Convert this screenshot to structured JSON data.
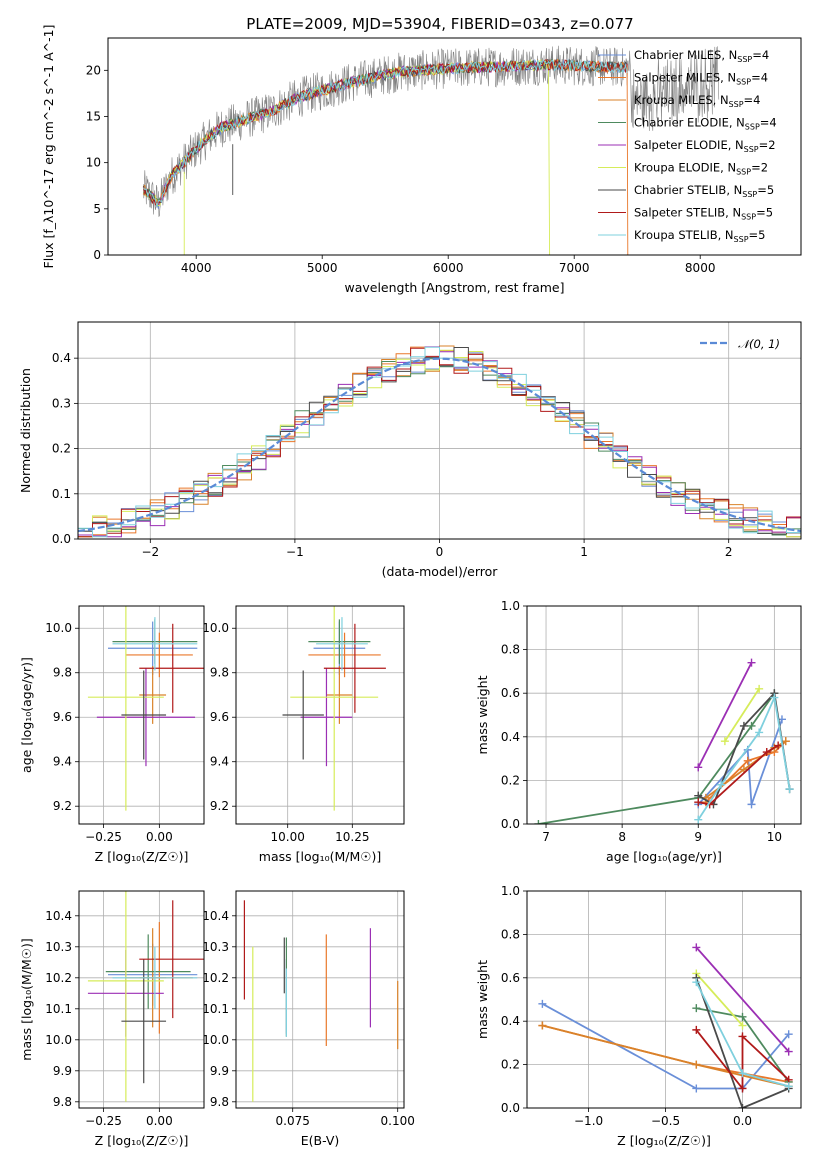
{
  "title": "PLATE=2009, MJD=53904, FIBERID=0343, z=0.077",
  "colors": [
    "#6a8fd8",
    "#e9782b",
    "#d9822a",
    "#4e8a5e",
    "#9b2fb4",
    "#d6ec5a",
    "#4a4a4a",
    "#b01a1a",
    "#7fd0de"
  ],
  "chart_data": [
    {
      "id": "spectrum",
      "type": "line",
      "xlabel": "wavelength [Angstrom, rest frame]",
      "ylabel": "Flux [f_λ10^-17 erg cm^-2 s^-1 A^-1]",
      "xlim": [
        3300,
        8800
      ],
      "ylim": [
        0,
        23.5
      ],
      "xticks": [
        4000,
        5000,
        6000,
        7000,
        8000
      ],
      "yticks": [
        0,
        5,
        10,
        15,
        20
      ],
      "grid": false,
      "legend_placement": "right",
      "continuum": {
        "x": [
          3600,
          3700,
          3800,
          3900,
          4000,
          4100,
          4200,
          4400,
          4600,
          4800,
          5000,
          5200,
          5400,
          5600,
          5800,
          6000,
          6200,
          6400,
          6600,
          6800,
          7000,
          7200,
          7400
        ],
        "y": [
          7.0,
          5.5,
          8.5,
          10.0,
          11.5,
          12.8,
          13.8,
          14.7,
          15.6,
          17.0,
          17.8,
          18.6,
          19.2,
          19.8,
          20.0,
          20.2,
          20.3,
          20.4,
          20.5,
          20.6,
          20.5,
          20.4,
          20.3
        ]
      },
      "series": [
        {
          "label": "Chabrier MILES, N",
          "sub": "SSP",
          "suffix": "=4"
        },
        {
          "label": "Salpeter MILES, N",
          "sub": "SSP",
          "suffix": "=4"
        },
        {
          "label": "Kroupa MILES, N",
          "sub": "SSP",
          "suffix": "=4"
        },
        {
          "label": "Chabrier ELODIE, N",
          "sub": "SSP",
          "suffix": "=4"
        },
        {
          "label": "Salpeter ELODIE, N",
          "sub": "SSP",
          "suffix": "=2"
        },
        {
          "label": "Kroupa ELODIE, N",
          "sub": "SSP",
          "suffix": "=2"
        },
        {
          "label": "Chabrier STELIB, N",
          "sub": "SSP",
          "suffix": "=5"
        },
        {
          "label": "Salpeter STELIB, N",
          "sub": "SSP",
          "suffix": "=5"
        },
        {
          "label": "Kroupa STELIB, N",
          "sub": "SSP",
          "suffix": "=5"
        }
      ]
    },
    {
      "id": "residuals",
      "type": "bar",
      "xlabel": "(data-model)/error",
      "ylabel": "Normed distribution",
      "xlim": [
        -2.5,
        2.5
      ],
      "ylim": [
        0,
        0.48
      ],
      "xticks": [
        -2,
        -1,
        0,
        1,
        2
      ],
      "xticklabels": [
        "−2",
        "−1",
        "0",
        "1",
        "2"
      ],
      "yticks": [
        0.0,
        0.1,
        0.2,
        0.3,
        0.4
      ],
      "grid": true,
      "bin_width": 0.1,
      "legend": "𝒩(0, 1)",
      "legend_placement": "top-right"
    },
    {
      "id": "age_vs_Z",
      "type": "scatter",
      "xlabel": "Z [log₁₀(Z/Z☉)]",
      "ylabel": "age  [log₁₀(age/yr)]",
      "xlim": [
        -0.36,
        0.2
      ],
      "ylim": [
        9.12,
        10.1
      ],
      "xticks": [
        -0.25,
        0.0
      ],
      "xticklabels": [
        "−0.25",
        "0.00"
      ],
      "yticks": [
        9.2,
        9.4,
        9.6,
        9.8,
        10.0
      ],
      "grid": true,
      "points": [
        {
          "x": -0.03,
          "xe": 0.2,
          "y": 9.91,
          "ye": 0.12
        },
        {
          "x": 0.0,
          "xe": 0.15,
          "y": 9.88,
          "ye": 0.1
        },
        {
          "x": -0.03,
          "xe": 0.06,
          "y": 9.7,
          "ye": 0.13
        },
        {
          "x": -0.02,
          "xe": 0.19,
          "y": 9.94,
          "ye": 0.1
        },
        {
          "x": -0.06,
          "xe": 0.22,
          "y": 9.6,
          "ye": 0.22
        },
        {
          "x": -0.15,
          "xe": 0.17,
          "y": 9.69,
          "ye": 0.51
        },
        {
          "x": -0.07,
          "xe": 0.1,
          "y": 9.61,
          "ye": 0.2
        },
        {
          "x": 0.06,
          "xe": 0.15,
          "y": 9.82,
          "ye": 0.2
        },
        {
          "x": -0.02,
          "xe": 0.19,
          "y": 9.93,
          "ye": 0.12
        }
      ]
    },
    {
      "id": "age_vs_mass",
      "type": "scatter",
      "xlabel": "mass [log₁₀(M/M☉)]",
      "ylabel": "",
      "xlim": [
        9.8,
        10.45
      ],
      "ylim": [
        9.12,
        10.1
      ],
      "xticks": [
        10.0,
        10.25
      ],
      "xticklabels": [
        "10.00",
        "10.25"
      ],
      "yticks": [
        9.2,
        9.4,
        9.6,
        9.8,
        10.0
      ],
      "grid": true,
      "points": [
        {
          "x": 10.2,
          "xe": 0.1,
          "y": 9.91,
          "ye": 0.12
        },
        {
          "x": 10.22,
          "xe": 0.14,
          "y": 9.88,
          "ye": 0.1
        },
        {
          "x": 10.2,
          "xe": 0.05,
          "y": 9.7,
          "ye": 0.13
        },
        {
          "x": 10.2,
          "xe": 0.12,
          "y": 9.94,
          "ye": 0.1
        },
        {
          "x": 10.15,
          "xe": 0.1,
          "y": 9.6,
          "ye": 0.22
        },
        {
          "x": 10.18,
          "xe": 0.17,
          "y": 9.69,
          "ye": 0.51
        },
        {
          "x": 10.06,
          "xe": 0.08,
          "y": 9.61,
          "ye": 0.2
        },
        {
          "x": 10.26,
          "xe": 0.12,
          "y": 9.82,
          "ye": 0.2
        },
        {
          "x": 10.21,
          "xe": 0.1,
          "y": 9.93,
          "ye": 0.12
        }
      ]
    },
    {
      "id": "weight_vs_age",
      "type": "line",
      "xlabel": "age  [log₁₀(age/yr)]",
      "ylabel": "mass weight",
      "xlim": [
        6.75,
        10.35
      ],
      "ylim": [
        0,
        1.0
      ],
      "xticks": [
        7,
        8,
        9,
        10
      ],
      "yticks": [
        0.0,
        0.2,
        0.4,
        0.6,
        0.8,
        1.0
      ],
      "grid": true,
      "series": [
        {
          "x": [
            9.0,
            9.65,
            9.7,
            10.1
          ],
          "y": [
            0.09,
            0.34,
            0.09,
            0.48
          ]
        },
        {
          "x": [
            9.1,
            9.65,
            10.0,
            10.15
          ],
          "y": [
            0.1,
            0.29,
            0.33,
            0.38
          ]
        },
        {
          "x": [
            9.1,
            9.6,
            10.0,
            10.15
          ],
          "y": [
            0.12,
            0.25,
            0.35,
            0.38
          ]
        },
        {
          "x": [
            6.9,
            9.0,
            9.7,
            10.0
          ],
          "y": [
            0.0,
            0.12,
            0.45,
            0.6
          ]
        },
        {
          "x": [
            9.0,
            9.7
          ],
          "y": [
            0.26,
            0.74
          ]
        },
        {
          "x": [
            9.35,
            9.8
          ],
          "y": [
            0.38,
            0.62
          ]
        },
        {
          "x": [
            9.0,
            9.2,
            9.6,
            10.0,
            10.2
          ],
          "y": [
            0.13,
            0.09,
            0.45,
            0.6,
            0.16
          ]
        },
        {
          "x": [
            9.0,
            9.15,
            9.9,
            10.05
          ],
          "y": [
            0.1,
            0.09,
            0.33,
            0.36
          ]
        },
        {
          "x": [
            9.0,
            9.3,
            9.8,
            10.0,
            10.2
          ],
          "y": [
            0.02,
            0.18,
            0.42,
            0.58,
            0.16
          ]
        }
      ]
    },
    {
      "id": "mass_vs_Z",
      "type": "scatter",
      "xlabel": "Z [log₁₀(Z/Z☉)]",
      "ylabel": "mass [log₁₀(M/M☉)]",
      "xlim": [
        -0.36,
        0.2
      ],
      "ylim": [
        9.78,
        10.48
      ],
      "xticks": [
        -0.25,
        0.0
      ],
      "xticklabels": [
        "−0.25",
        "0.00"
      ],
      "yticks": [
        9.8,
        9.9,
        10.0,
        10.1,
        10.2,
        10.3,
        10.4
      ],
      "grid": true,
      "points": [
        {
          "x": -0.03,
          "xe": 0.2,
          "y": 10.21,
          "ye": 0.1
        },
        {
          "x": 0.0,
          "xe": 0.15,
          "y": 10.2,
          "ye": 0.18
        },
        {
          "x": -0.03,
          "xe": 0.06,
          "y": 10.2,
          "ye": 0.16
        },
        {
          "x": -0.05,
          "xe": 0.19,
          "y": 10.22,
          "ye": 0.12
        },
        {
          "x": -0.15,
          "xe": 0.17,
          "y": 10.15,
          "ye": 0.14
        },
        {
          "x": -0.15,
          "xe": 0.17,
          "y": 10.19,
          "ye": 0.39
        },
        {
          "x": -0.07,
          "xe": 0.1,
          "y": 10.06,
          "ye": 0.2
        },
        {
          "x": 0.06,
          "xe": 0.15,
          "y": 10.26,
          "ye": 0.19
        },
        {
          "x": -0.02,
          "xe": 0.19,
          "y": 10.2,
          "ye": 0.1
        }
      ]
    },
    {
      "id": "ebv",
      "type": "scatter",
      "xlabel": "E(B-V)",
      "ylabel": "",
      "xlim": [
        0.0615,
        0.1015
      ],
      "ylim": [
        9.78,
        10.48
      ],
      "xticks": [
        0.075,
        0.1
      ],
      "xticklabels": [
        "0.075",
        "0.100"
      ],
      "yticks": [
        9.8,
        9.9,
        10.0,
        10.1,
        10.2,
        10.3,
        10.4
      ],
      "grid": true,
      "points": [
        {
          "x": 0.0735,
          "y": 10.14,
          "ye": 0.12
        },
        {
          "x": 0.083,
          "y": 10.16,
          "ye": 0.18
        },
        {
          "x": 0.1,
          "y": 10.08,
          "ye": 0.11
        },
        {
          "x": 0.0735,
          "y": 10.17,
          "ye": 0.16
        },
        {
          "x": 0.0935,
          "y": 10.2,
          "ye": 0.16
        },
        {
          "x": 0.0655,
          "y": 10.05,
          "ye": 0.25
        },
        {
          "x": 0.073,
          "y": 10.24,
          "ye": 0.09
        },
        {
          "x": 0.0635,
          "y": 10.29,
          "ye": 0.16
        },
        {
          "x": 0.0735,
          "y": 10.12,
          "ye": 0.11
        }
      ]
    },
    {
      "id": "weight_vs_Z",
      "type": "line",
      "xlabel": "Z [log₁₀(Z/Z☉)]",
      "ylabel": "mass weight",
      "xlim": [
        -1.4,
        0.38
      ],
      "ylim": [
        0,
        1.0
      ],
      "xticks": [
        -1.0,
        -0.5,
        0.0
      ],
      "xticklabels": [
        "−1.0",
        "−0.5",
        "0.0"
      ],
      "yticks": [
        0.0,
        0.2,
        0.4,
        0.6,
        0.8,
        1.0
      ],
      "grid": true,
      "series": [
        {
          "x": [
            -1.3,
            -0.3,
            0.0,
            0.3
          ],
          "y": [
            0.48,
            0.09,
            0.09,
            0.34
          ]
        },
        {
          "x": [
            -1.3,
            -0.3,
            0.3
          ],
          "y": [
            0.38,
            0.2,
            0.12
          ]
        },
        {
          "x": [
            -1.3,
            -0.3,
            0.3
          ],
          "y": [
            0.38,
            0.2,
            0.1
          ]
        },
        {
          "x": [
            -0.3,
            0.0,
            0.3
          ],
          "y": [
            0.46,
            0.42,
            0.12
          ]
        },
        {
          "x": [
            -0.3,
            0.3
          ],
          "y": [
            0.74,
            0.26
          ]
        },
        {
          "x": [
            -0.3,
            0.0
          ],
          "y": [
            0.62,
            0.38
          ]
        },
        {
          "x": [
            -0.3,
            0.0,
            0.3
          ],
          "y": [
            0.6,
            0.0,
            0.09
          ]
        },
        {
          "x": [
            -0.3,
            0.0,
            0.0,
            0.3
          ],
          "y": [
            0.36,
            0.09,
            0.33,
            0.13
          ]
        },
        {
          "x": [
            -0.3,
            0.0,
            0.3
          ],
          "y": [
            0.58,
            0.16,
            0.1
          ]
        }
      ]
    }
  ]
}
